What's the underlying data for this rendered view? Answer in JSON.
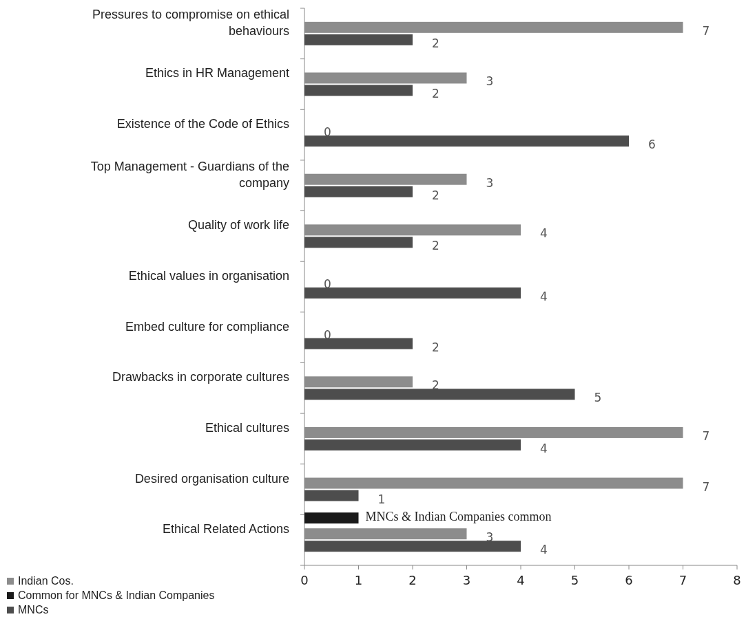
{
  "chart_data": {
    "type": "bar",
    "orientation": "horizontal",
    "categories": [
      "Pressures to compromise on ethical behaviours",
      "Ethics in HR Management",
      "Existence of the Code of Ethics",
      "Top Management - Guardians of the company",
      "Quality of work life",
      "Ethical values in organisation",
      "Embed culture for compliance",
      "Drawbacks in corporate cultures",
      "Ethical cultures",
      "Desired organisation culture",
      "Ethical Related Actions"
    ],
    "series": [
      {
        "name": "Indian Cos.",
        "color": "#8c8c8c",
        "values": [
          7,
          3,
          0,
          3,
          4,
          0,
          0,
          2,
          7,
          7,
          3
        ],
        "value_labels": [
          "7",
          "3",
          "0",
          "3",
          "4",
          "0",
          "0",
          "2",
          "7",
          "7",
          "3"
        ]
      },
      {
        "name": "Common for MNCs & Indian Companies",
        "color": "#1a1a1a",
        "values": [
          null,
          null,
          null,
          null,
          null,
          null,
          null,
          null,
          null,
          null,
          1
        ],
        "value_labels": [
          null,
          null,
          null,
          null,
          null,
          null,
          null,
          null,
          null,
          null,
          "MNCs & Indian Companies common"
        ]
      },
      {
        "name": "MNCs",
        "color": "#4d4d4d",
        "values": [
          2,
          2,
          6,
          2,
          2,
          4,
          2,
          5,
          4,
          1,
          4
        ],
        "value_labels": [
          "2",
          "2",
          "6",
          "2",
          "2",
          "4",
          "2",
          "5",
          "4",
          "1",
          "4"
        ]
      }
    ],
    "xlim": [
      0,
      8
    ],
    "xticks": [
      0,
      1,
      2,
      3,
      4,
      5,
      6,
      7,
      8
    ],
    "grid": false,
    "legend": "bottom left"
  }
}
